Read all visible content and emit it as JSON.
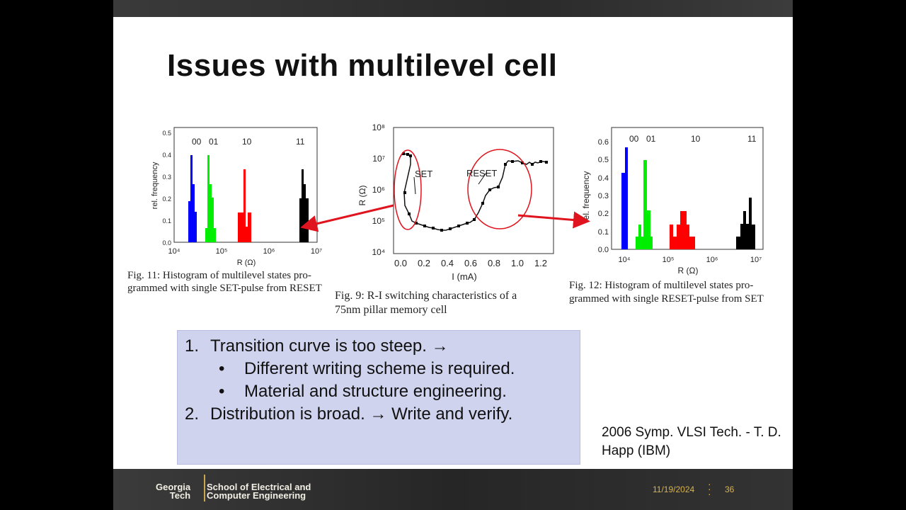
{
  "slide": {
    "title": "Issues with multilevel cell",
    "fig11": {
      "state_labels": [
        "00",
        "01",
        "10",
        "11"
      ],
      "ylabel": "rel. frequency",
      "xlabel": "R (Ω)",
      "yticks": [
        "0.5",
        "0.4",
        "0.3",
        "0.2",
        "0.1",
        "0.0"
      ],
      "xticks": [
        "10⁴",
        "10⁵",
        "10⁶",
        "10⁷"
      ],
      "caption_line1": "Fig. 11: Histogram of multilevel states pro-",
      "caption_line2": "grammed with single SET-pulse from RESET"
    },
    "fig9": {
      "ylabel": "R (Ω)",
      "xlabel": "I (mA)",
      "yticks": [
        "10⁸",
        "10⁷",
        "10⁶",
        "10⁵",
        "10⁴"
      ],
      "xticks": [
        "0.0",
        "0.2",
        "0.4",
        "0.6",
        "0.8",
        "1.0",
        "1.2"
      ],
      "set_label": "SET",
      "reset_label": "RESET",
      "caption_line1": "Fig. 9: R-I switching characteristics of a",
      "caption_line2": "75nm pillar memory cell"
    },
    "fig12": {
      "state_labels": [
        "00",
        "01",
        "10",
        "11"
      ],
      "ylabel": "rel. frequency",
      "xlabel": "R (Ω)",
      "yticks": [
        "0.6",
        "0.5",
        "0.4",
        "0.3",
        "0.2",
        "0.1",
        "0.0"
      ],
      "xticks": [
        "10⁴",
        "10⁵",
        "10⁶",
        "10⁷"
      ],
      "caption_line1": "Fig. 12: Histogram of multilevel states pro-",
      "caption_line2": "grammed with single RESET-pulse from SET"
    },
    "issues": {
      "item1_num": "1.",
      "item1": "Transition curve is too steep. →",
      "sub1": "Different writing scheme is required.",
      "sub2": "Material and structure engineering.",
      "item2_num": "2.",
      "item2": "Distribution is broad. → Write and verify.",
      "bullet": "•"
    },
    "reference_line1": "2006 Symp. VLSI Tech. - T. D.",
    "reference_line2": "Happ (IBM)"
  },
  "footer": {
    "logo_left_line1": "Georgia",
    "logo_left_line2": "Tech",
    "logo_right_line1": "School of Electrical and",
    "logo_right_line2": "Computer Engineering",
    "date": "11/19/2024",
    "page_number": "36"
  },
  "colors": {
    "state_00": "#0000ff",
    "state_01": "#00ee00",
    "state_10": "#ff0000",
    "state_11": "#000000",
    "arrow": "#e0141e",
    "box_bg": "#cfd3ee",
    "accent_gold": "#d8b24a"
  }
}
